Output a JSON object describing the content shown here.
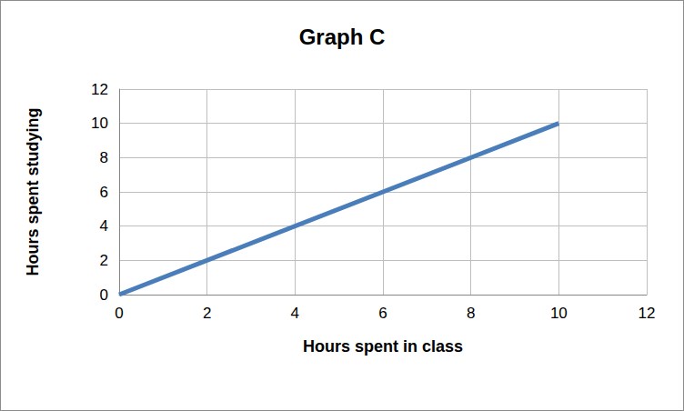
{
  "chart_data": {
    "type": "line",
    "title": "Graph C",
    "x_label": "Hours spent in class",
    "y_label": "Hours spent studying",
    "x": [
      0,
      10
    ],
    "values": [
      0,
      10
    ],
    "color": "#4a7ebb",
    "marker": "none",
    "xlim": [
      0,
      12
    ],
    "xticks": [
      0,
      2,
      4,
      6,
      8,
      10,
      12
    ],
    "ylim": [
      0,
      12
    ],
    "yticks": [
      0,
      2,
      4,
      6,
      8,
      10,
      12
    ],
    "grid": true
  }
}
